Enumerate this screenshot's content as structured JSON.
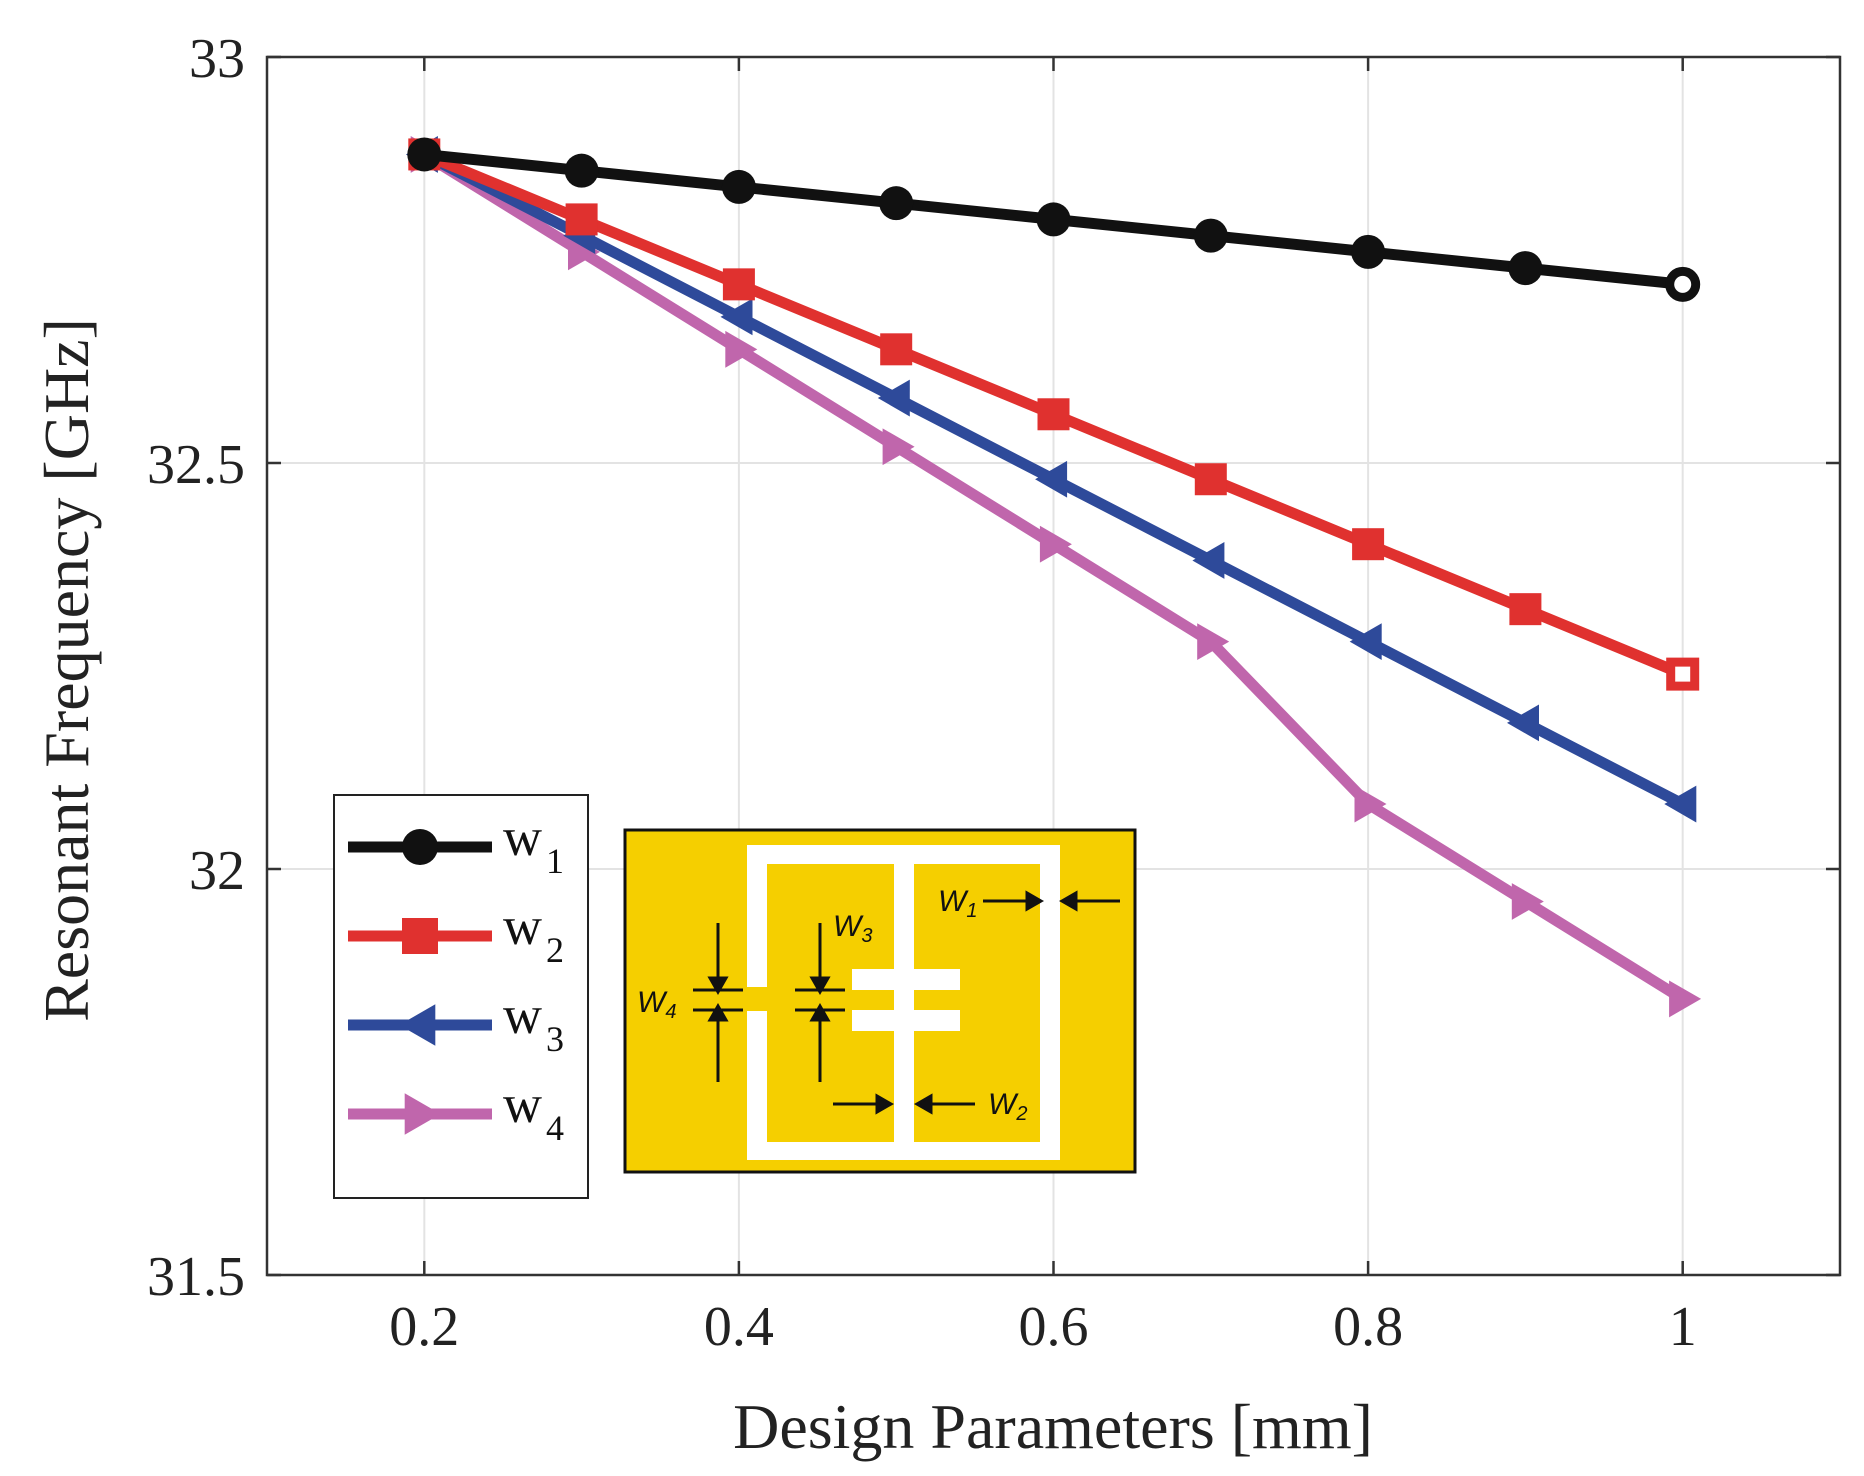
{
  "chart_data": {
    "type": "line",
    "title": "",
    "xlabel": "Design Parameters [mm]",
    "ylabel": "Resonant Frequency [GHz]",
    "xlim": [
      0.1,
      1.1
    ],
    "ylim": [
      31.5,
      33
    ],
    "xticks": [
      0.2,
      0.4,
      0.6,
      0.8,
      1
    ],
    "xtick_labels": [
      "0.2",
      "0.4",
      "0.6",
      "0.8",
      "1"
    ],
    "yticks": [
      31.5,
      32,
      32.5,
      33
    ],
    "ytick_labels": [
      "31.5",
      "32",
      "32.5",
      "33"
    ],
    "grid": true,
    "x": [
      0.2,
      0.3,
      0.4,
      0.5,
      0.6,
      0.7,
      0.8,
      0.9,
      1.0
    ],
    "series": [
      {
        "name": "w",
        "sub": "1",
        "color": "#111111",
        "marker": "circle",
        "values": [
          32.88,
          32.86,
          32.84,
          32.82,
          32.8,
          32.78,
          32.76,
          32.74,
          32.72
        ]
      },
      {
        "name": "w",
        "sub": "2",
        "color": "#e0312f",
        "marker": "square",
        "values": [
          32.88,
          32.8,
          32.72,
          32.64,
          32.56,
          32.48,
          32.4,
          32.32,
          32.24
        ]
      },
      {
        "name": "w",
        "sub": "3",
        "color": "#2e4a9a",
        "marker": "triangle-left",
        "values": [
          32.88,
          32.78,
          32.68,
          32.58,
          32.48,
          32.38,
          32.28,
          32.18,
          32.08
        ]
      },
      {
        "name": "w",
        "sub": "4",
        "color": "#c066ac",
        "marker": "triangle-right",
        "values": [
          32.88,
          32.76,
          32.64,
          32.52,
          32.4,
          32.28,
          32.08,
          31.96,
          31.84
        ]
      }
    ],
    "legend_position": "bottom-left",
    "inset": {
      "fill": "#f5cf00",
      "labels": [
        {
          "key": "w1",
          "main": "W",
          "sub": "1"
        },
        {
          "key": "w2",
          "main": "W",
          "sub": "2"
        },
        {
          "key": "w3",
          "main": "W",
          "sub": "3"
        },
        {
          "key": "w4",
          "main": "W",
          "sub": "4"
        }
      ]
    }
  }
}
